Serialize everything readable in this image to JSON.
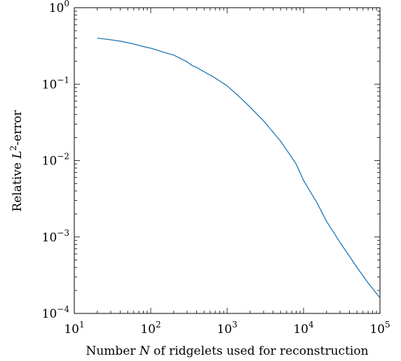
{
  "chart_data": {
    "type": "line",
    "title": "",
    "xlabel": {
      "before": "Number ",
      "var": "N",
      "after": " of ridgelets used for reconstruction"
    },
    "ylabel": {
      "before": "Relative ",
      "var": "L",
      "sup": "2",
      "after": "-error"
    },
    "x_scale": "log",
    "y_scale": "log",
    "xlim": [
      10,
      100000
    ],
    "ylim": [
      0.0001,
      1
    ],
    "x_ticks": [
      {
        "base": "10",
        "exp": "1"
      },
      {
        "base": "10",
        "exp": "2"
      },
      {
        "base": "10",
        "exp": "3"
      },
      {
        "base": "10",
        "exp": "4"
      },
      {
        "base": "10",
        "exp": "5"
      }
    ],
    "y_ticks": [
      {
        "base": "10",
        "exp": "−4"
      },
      {
        "base": "10",
        "exp": "−3"
      },
      {
        "base": "10",
        "exp": "−2"
      },
      {
        "base": "10",
        "exp": "−1"
      },
      {
        "base": "10",
        "exp": "0"
      }
    ],
    "grid": false,
    "series": [
      {
        "color": "#1f78b4",
        "x": [
          20,
          30,
          40,
          60,
          80,
          100,
          150,
          200,
          300,
          350,
          400,
          500,
          700,
          1000,
          1500,
          2000,
          3000,
          5000,
          7000,
          8000,
          10000,
          15000,
          20000,
          30000,
          50000,
          70000,
          100000
        ],
        "y": [
          0.4,
          0.38,
          0.365,
          0.335,
          0.31,
          0.295,
          0.26,
          0.24,
          0.195,
          0.175,
          0.165,
          0.145,
          0.12,
          0.095,
          0.066,
          0.05,
          0.033,
          0.018,
          0.011,
          0.009,
          0.0055,
          0.0028,
          0.0016,
          0.00085,
          0.0004,
          0.00025,
          0.00016
        ]
      }
    ]
  }
}
